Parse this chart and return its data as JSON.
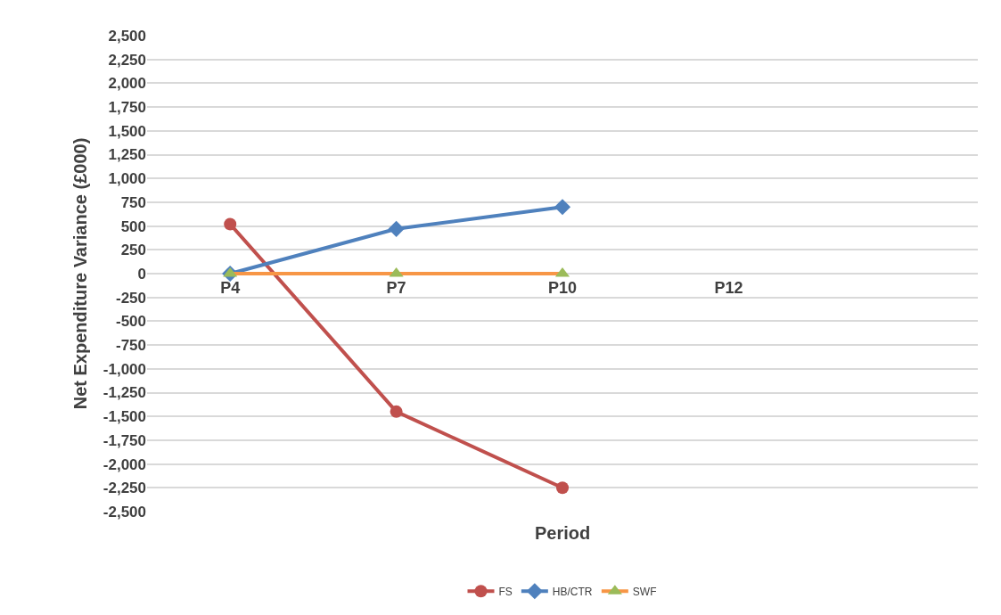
{
  "chart_data": {
    "type": "line",
    "xlabel": "Period",
    "ylabel": "Net Expenditure Variance (£000)",
    "categories": [
      "P4",
      "P7",
      "P10",
      "P12",
      null
    ],
    "series": [
      {
        "name": "FS",
        "color": "#c0504d",
        "marker": "circle",
        "values": [
          520,
          -1450,
          -2250,
          null,
          null
        ]
      },
      {
        "name": "HB/CTR",
        "color": "#4f81bd",
        "marker": "diamond",
        "values": [
          0,
          470,
          700,
          null,
          null
        ]
      },
      {
        "name": "SWF",
        "color": "#f79646",
        "colors": [
          "#9bbb59",
          "#9bbb59",
          "#9bbb59",
          null,
          null
        ],
        "marker": "triangle",
        "values": [
          0,
          0,
          0,
          null,
          null
        ]
      }
    ],
    "ylim": [
      -2500,
      2500
    ],
    "yticks": [
      {
        "value": -2500,
        "label": "-2,500"
      },
      {
        "value": -2250,
        "label": "-2,250"
      },
      {
        "value": -2000,
        "label": "-2,000"
      },
      {
        "value": -1750,
        "label": "-1,750"
      },
      {
        "value": -1500,
        "label": "-1,500"
      },
      {
        "value": -1250,
        "label": "-1,250"
      },
      {
        "value": -1000,
        "label": "-1,000"
      },
      -750,
      -500,
      -250,
      0,
      250,
      500,
      750,
      {
        "value": 1000,
        "label": "1,000"
      },
      {
        "value": 1250,
        "label": "1,250"
      },
      {
        "value": 1500,
        "label": "1,500"
      },
      {
        "value": 1750,
        "label": "1,750"
      },
      {
        "value": 2000,
        "label": "2,000"
      },
      {
        "value": 2250,
        "label": "2,250"
      },
      {
        "value": 2500,
        "label": "2,500"
      }
    ],
    "grid": "y",
    "legend": "bottom"
  }
}
